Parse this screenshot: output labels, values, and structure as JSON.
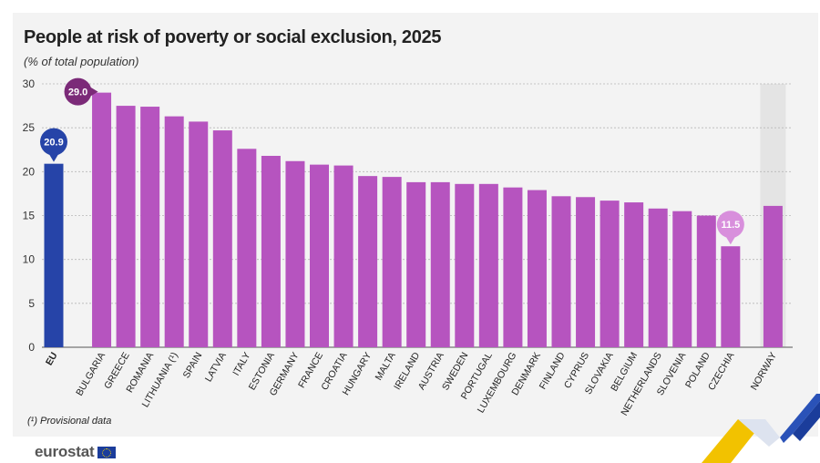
{
  "chart_data": {
    "type": "bar",
    "title": "People at risk of poverty or social exclusion, 2025",
    "subtitle": "(% of total population)",
    "ylim": [
      0,
      30
    ],
    "yticks": [
      0,
      5,
      10,
      15,
      20,
      25,
      30
    ],
    "categories": [
      "EU",
      "BULGARIA",
      "GREECE",
      "ROMANIA",
      "LITHUANIA (¹)",
      "SPAIN",
      "LATVIA",
      "ITALY",
      "ESTONIA",
      "GERMANY",
      "FRANCE",
      "CROATIA",
      "HUNGARY",
      "MALTA",
      "IRELAND",
      "AUSTRIA",
      "SWEDEN",
      "PORTUGAL",
      "LUXEMBOURG",
      "DENMARK",
      "FINLAND",
      "CYPRUS",
      "SLOVAKIA",
      "BELGIUM",
      "NETHERLANDS",
      "SLOVENIA",
      "POLAND",
      "CZECHIA",
      "NORWAY"
    ],
    "values": [
      20.9,
      29.0,
      27.5,
      27.4,
      26.3,
      25.7,
      24.7,
      22.6,
      21.8,
      21.2,
      20.8,
      20.7,
      19.5,
      19.4,
      18.8,
      18.8,
      18.6,
      18.6,
      18.2,
      17.9,
      17.2,
      17.1,
      16.7,
      16.5,
      15.8,
      15.5,
      15.0,
      11.5,
      16.1
    ],
    "callouts": [
      {
        "category": "EU",
        "label": "20.9"
      },
      {
        "category": "BULGARIA",
        "label": "29.0"
      },
      {
        "category": "CZECHIA",
        "label": "11.5"
      }
    ],
    "grid": true,
    "colors": {
      "eu": "#2644a8",
      "member": "#b654bf",
      "max_callout": "#7b2a78",
      "min_callout": "#d88fdc",
      "non_eu_band": "#e4e4e4"
    }
  },
  "footnote": "(¹) Provisional data",
  "logo": {
    "text": "eurostat",
    "icon": "eu-flag-icon"
  }
}
